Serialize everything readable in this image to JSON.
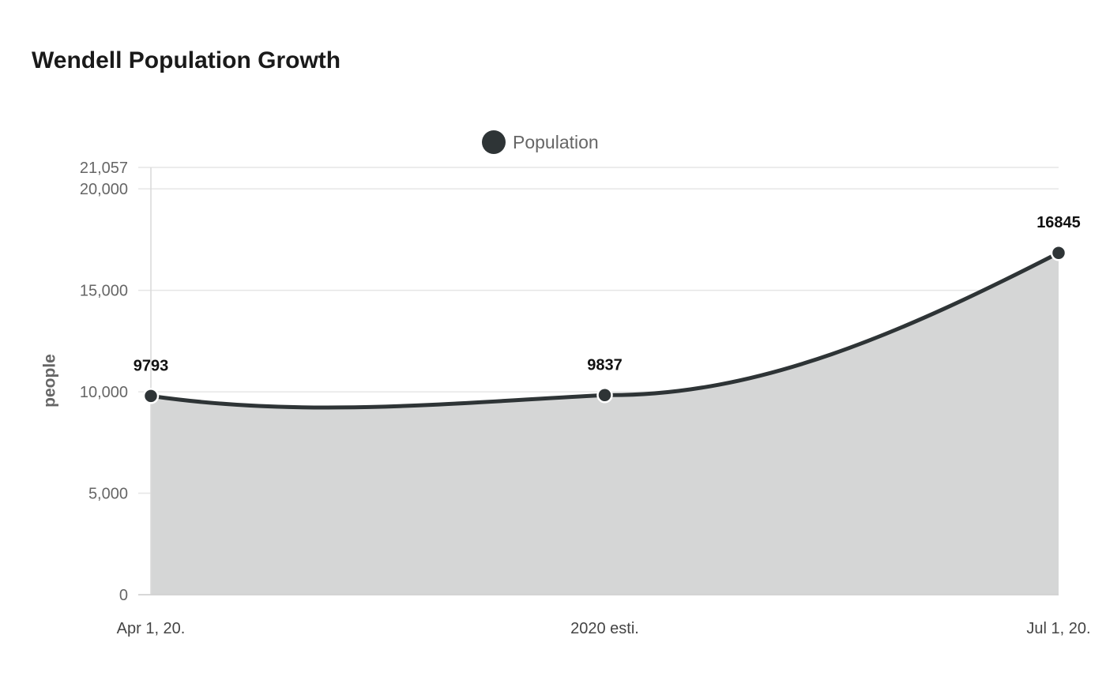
{
  "chart_data": {
    "type": "area",
    "title": "Wendell Population Growth",
    "xlabel": "",
    "ylabel": "people",
    "categories": [
      "Apr 1, 20.",
      "2020 esti.",
      "Jul 1, 20."
    ],
    "series": [
      {
        "name": "Population",
        "values": [
          9793,
          9837,
          16845
        ],
        "data_labels": [
          "9793",
          "9837",
          "16845"
        ]
      }
    ],
    "ylim": [
      0,
      21057
    ],
    "yticks": [
      0,
      5000,
      10000,
      15000,
      20000,
      21057
    ],
    "ytick_labels": [
      "0",
      "5,000",
      "10,000",
      "15,000",
      "20,000",
      "21,057"
    ],
    "grid": true,
    "legend_position": "top",
    "colors": {
      "line": "#2e3436",
      "fill": "#d5d6d6",
      "grid": "#e6e6e6"
    }
  }
}
